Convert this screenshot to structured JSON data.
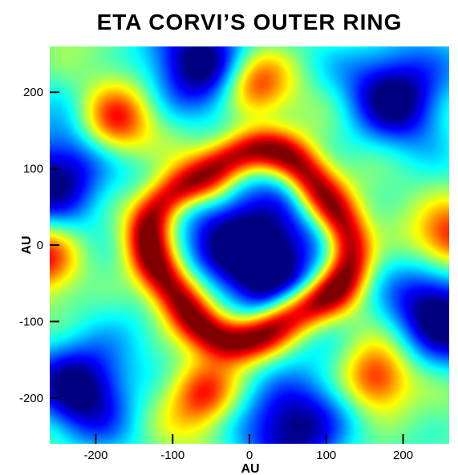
{
  "chart_data": {
    "type": "heatmap",
    "title": "ETA CORVI’S OUTER RING",
    "xlabel": "AU",
    "ylabel": "AU",
    "xlim": [
      -260,
      260
    ],
    "ylim": [
      -260,
      260
    ],
    "xticks": [
      -200,
      -100,
      0,
      100,
      200
    ],
    "yticks": [
      200,
      100,
      0,
      -100,
      -200
    ],
    "xtick_labels": [
      "-200",
      "-100",
      "0",
      "100",
      "200"
    ],
    "ytick_labels": [
      "200",
      "100",
      "0",
      "-100",
      "-200"
    ],
    "colormap": "jet",
    "colormap_stops": [
      "#00007f",
      "#0000ff",
      "#00bfff",
      "#7fff7f",
      "#ffff00",
      "#ff4000",
      "#800000"
    ],
    "grid": false,
    "features": {
      "ring": {
        "center": [
          0,
          0
        ],
        "radius_au": 120,
        "width_au": 30
      },
      "inner_cavity_center": [
        0,
        0
      ],
      "blue_blobs": [
        [
          -60,
          240
        ],
        [
          195,
          200
        ],
        [
          -250,
          90
        ],
        [
          250,
          -90
        ],
        [
          -215,
          -185
        ],
        [
          60,
          -235
        ]
      ],
      "red_spurs": [
        [
          -60,
          -195
        ],
        [
          165,
          -175
        ],
        [
          -175,
          160
        ],
        [
          5,
          210
        ],
        [
          -265,
          -15
        ],
        [
          265,
          10
        ]
      ]
    }
  }
}
